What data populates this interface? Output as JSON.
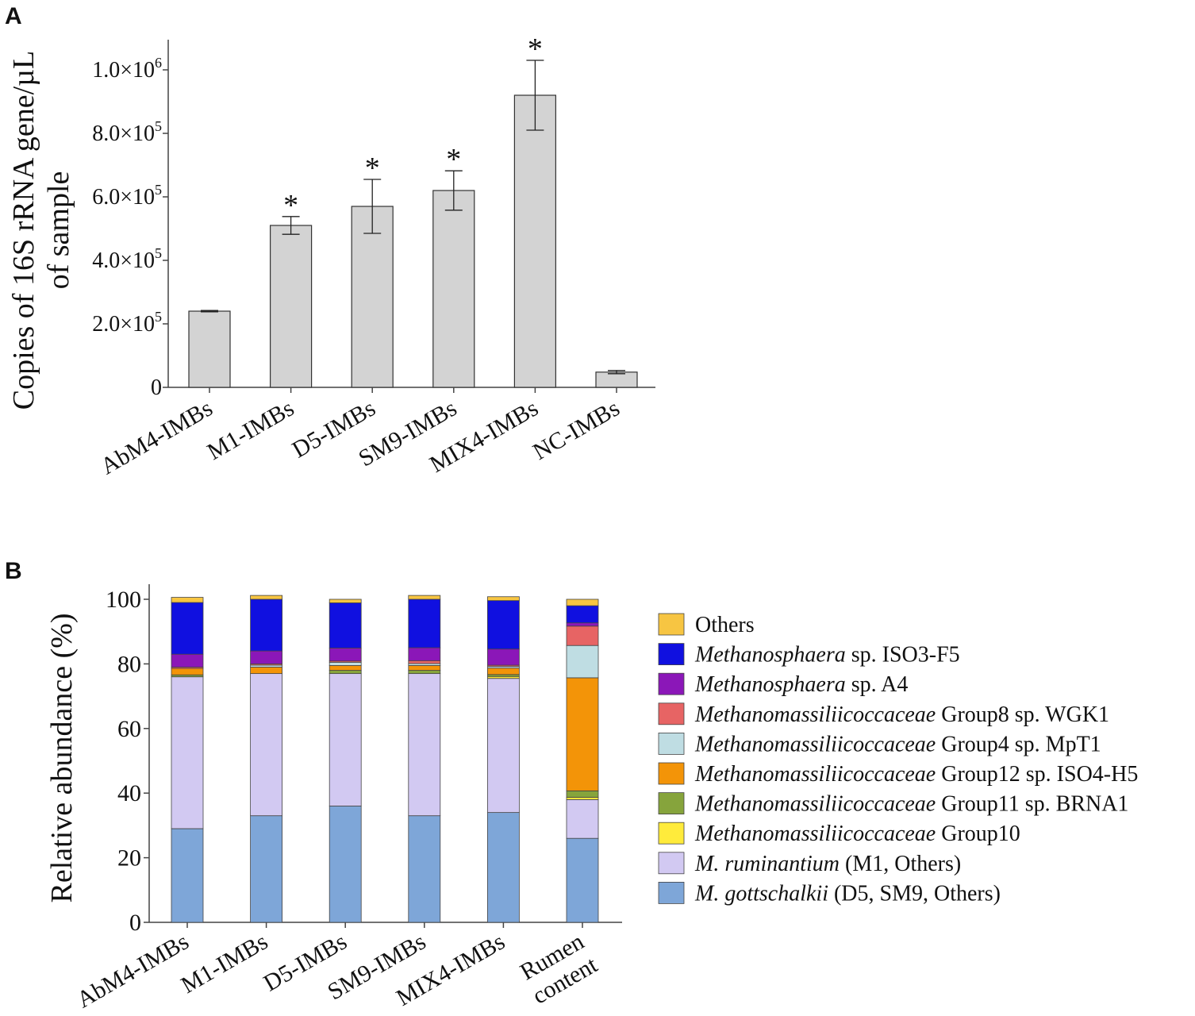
{
  "chart_data": [
    {
      "panel": "A",
      "type": "bar",
      "ylabel_line1": "Copies of 16S rRNA gene/µL",
      "ylabel_line2": "of sample",
      "ylim": [
        0,
        1100000
      ],
      "yticks": [
        {
          "value": 0,
          "mantissa": "0",
          "exp": ""
        },
        {
          "value": 200000,
          "mantissa": "2.0×10",
          "exp": "5"
        },
        {
          "value": 400000,
          "mantissa": "4.0×10",
          "exp": "5"
        },
        {
          "value": 600000,
          "mantissa": "6.0×10",
          "exp": "5"
        },
        {
          "value": 800000,
          "mantissa": "8.0×10",
          "exp": "5"
        },
        {
          "value": 1000000,
          "mantissa": "1.0×10",
          "exp": "6"
        }
      ],
      "categories": [
        "AbM4-IMBs",
        "M1-IMBs",
        "D5-IMBs",
        "SM9-IMBs",
        "MIX4-IMBs",
        "NC-IMBs"
      ],
      "values": [
        240000,
        510000,
        570000,
        620000,
        920000,
        48000
      ],
      "errors": [
        2000,
        28000,
        85000,
        62000,
        110000,
        5000
      ],
      "significance": [
        "",
        "*",
        "*",
        "*",
        "*",
        ""
      ],
      "bar_color": "#d3d3d3"
    },
    {
      "panel": "B",
      "type": "bar",
      "stacked": true,
      "ylabel": "Relative abundance (%)",
      "ylim": [
        0,
        100
      ],
      "yticks": [
        0,
        20,
        40,
        60,
        80,
        100
      ],
      "categories": [
        {
          "lines": [
            "AbM4-IMBs"
          ]
        },
        {
          "lines": [
            "M1-IMBs"
          ]
        },
        {
          "lines": [
            "D5-IMBs"
          ]
        },
        {
          "lines": [
            "SM9-IMBs"
          ]
        },
        {
          "lines": [
            "MIX4-IMBs"
          ]
        },
        {
          "lines": [
            "Rumen",
            "content"
          ]
        }
      ],
      "series": [
        {
          "name_italic": "M. gottschalkii",
          "name_rest": " (D5, SM9, Others)",
          "color": "#7ea6d8",
          "values": [
            29,
            33,
            36,
            33,
            34,
            26
          ]
        },
        {
          "name_italic": "M. ruminantium",
          "name_rest": " (M1, Others)",
          "color": "#d2c9f2",
          "values": [
            47,
            44,
            41,
            44,
            41.5,
            12
          ]
        },
        {
          "name_italic": "Methanomassiliicoccaceae",
          "name_rest": " Group10",
          "color": "#ffeb3b",
          "values": [
            0,
            0,
            0,
            0,
            0.6,
            0.7
          ]
        },
        {
          "name_italic": "Methanomassiliicoccaceae",
          "name_rest": " Group11 sp. BRNA1",
          "color": "#86a43c",
          "values": [
            0.6,
            0,
            1,
            1,
            0.6,
            2
          ]
        },
        {
          "name_italic": "Methanomassiliicoccaceae",
          "name_rest": " Group12 sp. ISO4-H5",
          "color": "#f39408",
          "values": [
            2,
            2,
            1.5,
            1.5,
            2,
            35
          ]
        },
        {
          "name_italic": "Methanomassiliicoccaceae",
          "name_rest": " Group4 sp. MpT1",
          "color": "#bfdde3",
          "values": [
            0,
            0.6,
            1,
            0.6,
            0.5,
            10
          ]
        },
        {
          "name_italic": "Methanomassiliicoccaceae",
          "name_rest": " Group8 sp. WGK1",
          "color": "#e76464",
          "values": [
            0.4,
            0.4,
            0.4,
            0.9,
            0.4,
            6
          ]
        },
        {
          "name_italic": "Methanosphaera",
          "name_rest": " sp. A4",
          "color": "#8b17b8",
          "values": [
            4,
            4,
            4,
            4,
            5,
            1
          ]
        },
        {
          "name_italic": "Methanosphaera",
          "name_rest": " sp. ISO3-F5",
          "color": "#1010e0",
          "values": [
            16,
            16,
            14,
            15,
            15,
            5.3
          ]
        },
        {
          "name_italic": "",
          "name_rest": "Others",
          "color": "#f7c542",
          "values": [
            1.6,
            1.2,
            1.1,
            1.2,
            1.2,
            2
          ]
        }
      ]
    }
  ]
}
